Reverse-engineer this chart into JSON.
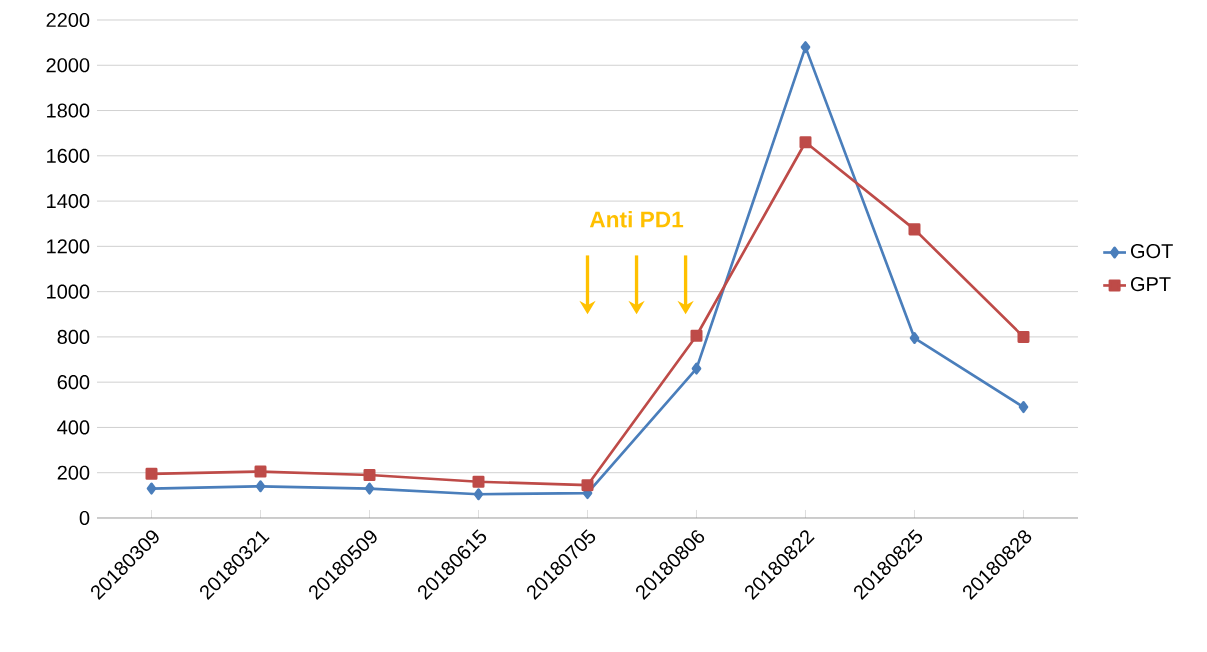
{
  "chart_data": {
    "type": "line",
    "categories": [
      "20180309",
      "20180321",
      "20180509",
      "20180615",
      "20180705",
      "20180806",
      "20180822",
      "20180825",
      "20180828"
    ],
    "series": [
      {
        "name": "GOT",
        "color": "#4a7ebb",
        "marker": "diamond",
        "values": [
          130,
          140,
          130,
          105,
          110,
          660,
          2080,
          795,
          490
        ]
      },
      {
        "name": "GPT",
        "color": "#be4b48",
        "marker": "square",
        "values": [
          195,
          205,
          190,
          160,
          145,
          805,
          1660,
          1275,
          800
        ]
      }
    ],
    "ylim": [
      0,
      2200
    ],
    "yticks": [
      0,
      200,
      400,
      600,
      800,
      1000,
      1200,
      1400,
      1600,
      1800,
      2000,
      2200
    ],
    "grid": "y",
    "legend": "right",
    "line_style": "solid",
    "annotations": [
      "Anti  PD1"
    ]
  }
}
